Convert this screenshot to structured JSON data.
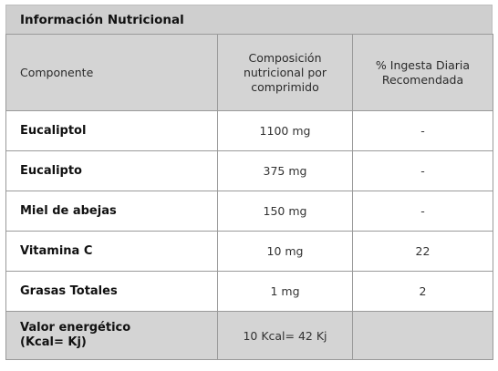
{
  "header": {
    "title": "Información Nutricional"
  },
  "columns": {
    "componente": "Componente",
    "composicion": [
      "Composición",
      "nutricional por",
      "comprimido"
    ],
    "ingesta": [
      "% Ingesta Diaria",
      "Recomendada"
    ]
  },
  "rows": [
    {
      "name": "Eucaliptol",
      "amount": "1100 mg",
      "idr": "-"
    },
    {
      "name": "Eucalipto",
      "amount": "375 mg",
      "idr": "-"
    },
    {
      "name": "Miel de abejas",
      "amount": "150 mg",
      "idr": "-"
    },
    {
      "name": "Vitamina C",
      "amount": "10 mg",
      "idr": "22"
    },
    {
      "name": "Grasas Totales",
      "amount": "1 mg",
      "idr": "2"
    }
  ],
  "energy": {
    "name": [
      "Valor energético",
      "(Kcal= Kj)"
    ],
    "amount": "10 Kcal= 42 Kj",
    "idr": ""
  },
  "colors": {
    "header_bg": "#cfcfcf",
    "border": "#9a9a9a"
  }
}
